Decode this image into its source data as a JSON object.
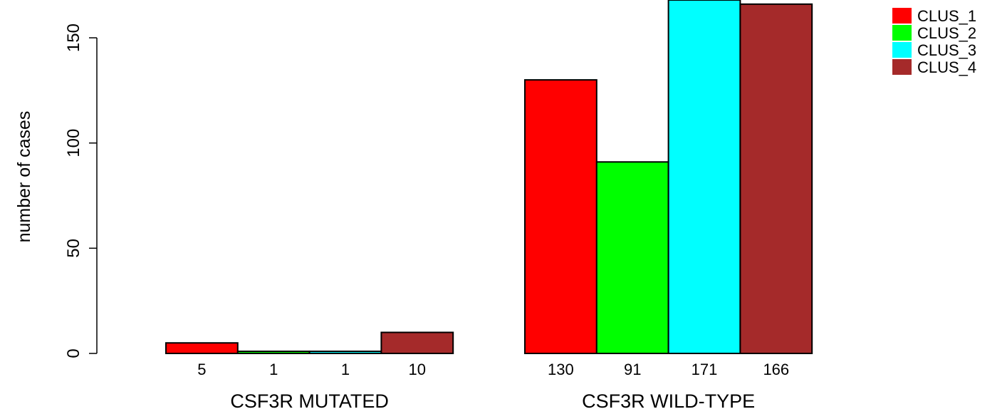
{
  "chart_data": {
    "type": "bar",
    "title": "",
    "xlabel": "",
    "ylabel": "number of cases",
    "ylim": [
      0,
      175
    ],
    "yticks": [
      0,
      50,
      100,
      150
    ],
    "groups": [
      "CSF3R MUTATED",
      "CSF3R WILD-TYPE"
    ],
    "series": [
      {
        "name": "CLUS_1",
        "color": "#ff0000",
        "values": [
          5,
          130
        ],
        "labels": [
          "5",
          "130"
        ]
      },
      {
        "name": "CLUS_2",
        "color": "#00ff00",
        "values": [
          1,
          91
        ],
        "labels": [
          "1",
          "91"
        ]
      },
      {
        "name": "CLUS_3",
        "color": "#00ffff",
        "values": [
          1,
          171
        ],
        "labels": [
          "1",
          "171"
        ]
      },
      {
        "name": "CLUS_4",
        "color": "#a52a2a",
        "values": [
          10,
          166
        ],
        "labels": [
          "10",
          "166"
        ]
      }
    ],
    "grid": false,
    "legend_position": "top-right"
  }
}
